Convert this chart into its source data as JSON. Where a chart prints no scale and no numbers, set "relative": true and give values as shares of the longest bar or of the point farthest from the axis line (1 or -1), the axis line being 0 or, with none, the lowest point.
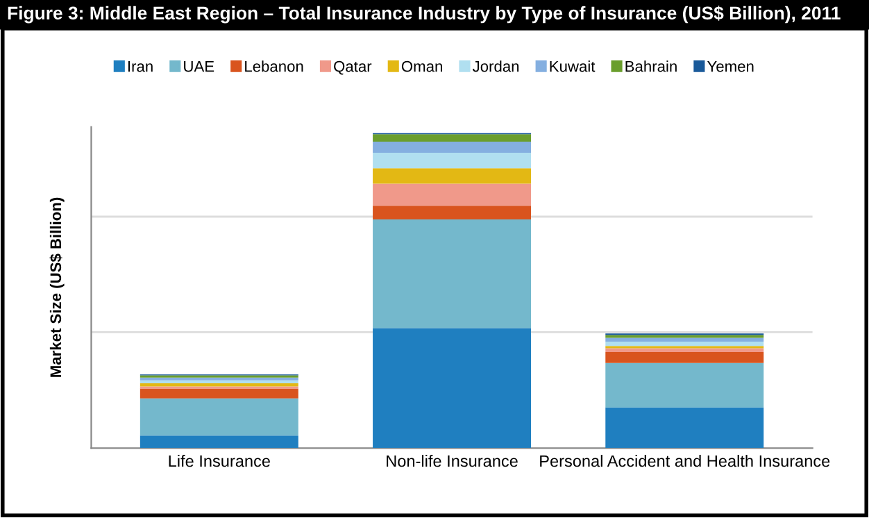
{
  "chart_data": {
    "type": "bar",
    "stacked": true,
    "relative": true,
    "title": "Figure 3: Middle East Region – Total Insurance Industry by Type of Insurance (US$ Billion), 2011",
    "ylabel": "Market Size (US$ Billion)",
    "categories": [
      "Life Insurance",
      "Non-life Insurance",
      "Personal Accident and Health Insurance"
    ],
    "series": [
      {
        "name": "Iran",
        "color": "#1f7fc0",
        "values": [
          0.04,
          0.381,
          0.129
        ]
      },
      {
        "name": "UAE",
        "color": "#74b8cc",
        "values": [
          0.118,
          0.345,
          0.141
        ]
      },
      {
        "name": "Lebanon",
        "color": "#d9541e",
        "values": [
          0.031,
          0.044,
          0.035
        ]
      },
      {
        "name": "Qatar",
        "color": "#f0998a",
        "values": [
          0.007,
          0.07,
          0.012
        ]
      },
      {
        "name": "Oman",
        "color": "#e3b814",
        "values": [
          0.01,
          0.049,
          0.007
        ]
      },
      {
        "name": "Jordan",
        "color": "#b0dff0",
        "values": [
          0.009,
          0.049,
          0.014
        ]
      },
      {
        "name": "Kuwait",
        "color": "#84afe0",
        "values": [
          0.009,
          0.035,
          0.012
        ]
      },
      {
        "name": "Bahrain",
        "color": "#6a9e2c",
        "values": [
          0.007,
          0.024,
          0.009
        ]
      },
      {
        "name": "Yemen",
        "color": "#1a5a9a",
        "values": [
          0.003,
          0.003,
          0.005
        ]
      }
    ],
    "ref_lines": [
      {
        "axis": "y",
        "value": 0.368,
        "color": "#dddddd"
      },
      {
        "axis": "y",
        "value": 0.735,
        "color": "#dddddd"
      }
    ],
    "legend": "top"
  }
}
